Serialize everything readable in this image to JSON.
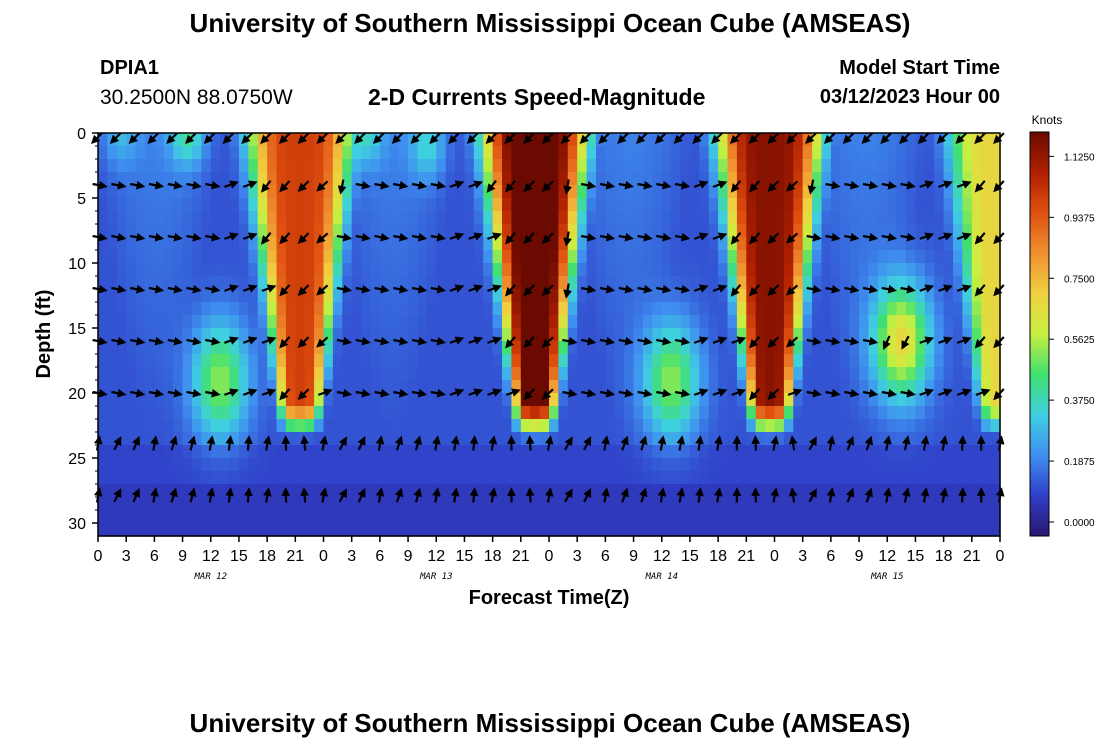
{
  "header": {
    "main_title": "University of Southern Mississippi Ocean Cube (AMSEAS)",
    "station_id": "DPIA1",
    "station_coords": "30.2500N  88.0750W",
    "plot_title": "2-D Currents Speed-Magnitude",
    "model_start_label": "Model Start Time",
    "model_start_value": "03/12/2023 Hour 00"
  },
  "footer": {
    "repeat_title": "University of Southern Mississippi Ocean Cube (AMSEAS)"
  },
  "colors": {
    "ramp": [
      "#2a1670",
      "#2f3fc8",
      "#3f8ff0",
      "#3fd0e0",
      "#40e070",
      "#c8f040",
      "#f0d040",
      "#f09030",
      "#e05010",
      "#b02000",
      "#6a0a00"
    ],
    "arrow": "#000000"
  },
  "chart_data": {
    "type": "heatmap",
    "title": "2-D Currents Speed-Magnitude",
    "xlabel": "Forecast Time(Z)",
    "ylabel": "Depth (ft)",
    "x_tick_labels": [
      "0",
      "3",
      "6",
      "9",
      "12",
      "15",
      "18",
      "21",
      "0",
      "3",
      "6",
      "9",
      "12",
      "15",
      "18",
      "21",
      "0",
      "3",
      "6",
      "9",
      "12",
      "15",
      "18",
      "21",
      "0",
      "3",
      "6",
      "9",
      "12",
      "15",
      "18",
      "21",
      "0"
    ],
    "x_range_hours": [
      0,
      96
    ],
    "date_labels": [
      {
        "text": "MAR 12",
        "hour": 12
      },
      {
        "text": "MAR 13",
        "hour": 36
      },
      {
        "text": "MAR 14",
        "hour": 60
      },
      {
        "text": "MAR 15",
        "hour": 84
      }
    ],
    "y_tick_labels": [
      "0",
      "5",
      "10",
      "15",
      "20",
      "25",
      "30"
    ],
    "y_tick_values": [
      0,
      5,
      10,
      15,
      20,
      25,
      30
    ],
    "y_range_ft": [
      0,
      31
    ],
    "colorbar": {
      "unit": "Knots",
      "labels": [
        "1.1250",
        "0.9375",
        "0.7500",
        "0.5625",
        "0.3750",
        "0.1875",
        "0.0000"
      ],
      "values": [
        1.125,
        0.9375,
        0.75,
        0.5625,
        0.375,
        0.1875,
        0.0
      ],
      "range": [
        0,
        1.2
      ]
    },
    "arrow_depths_ft": [
      0,
      4,
      8,
      12,
      16,
      20,
      24,
      28
    ],
    "arrow_hours": [
      0,
      2,
      4,
      6,
      8,
      10,
      12,
      14,
      16,
      18,
      20,
      22,
      24,
      26,
      28,
      30,
      32,
      34,
      36,
      38,
      40,
      42,
      44,
      46,
      48,
      50,
      52,
      54,
      56,
      58,
      60,
      62,
      64,
      66,
      68,
      70,
      72,
      74,
      76,
      78,
      80,
      82,
      84,
      86,
      88,
      90,
      92,
      94,
      96
    ],
    "flood_cores": [
      {
        "center_hour": 21.5,
        "peak_knots": 1.0
      },
      {
        "center_hour": 46.5,
        "peak_knots": 1.25
      },
      {
        "center_hour": 71.5,
        "peak_knots": 1.15
      },
      {
        "center_hour": 96,
        "peak_knots": 0.7
      }
    ]
  }
}
